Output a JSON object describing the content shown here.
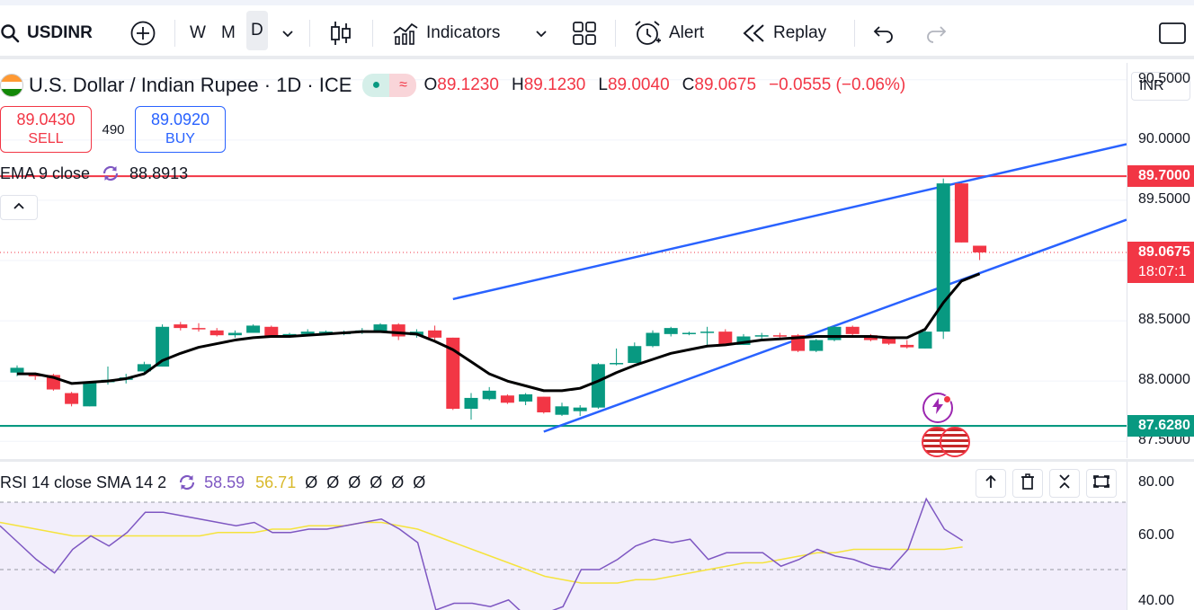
{
  "toolbar": {
    "symbol": "USDINR",
    "intervals": [
      "W",
      "M",
      "D"
    ],
    "active_interval": "D",
    "indicators_label": "Indicators",
    "alert_label": "Alert",
    "replay_label": "Replay"
  },
  "legend": {
    "title": "U.S. Dollar / Indian Rupee · 1D · ICE",
    "open_label": "O",
    "open": "89.1230",
    "high_label": "H",
    "high": "89.1230",
    "low_label": "L",
    "low": "89.0040",
    "close_label": "C",
    "close": "89.0675",
    "change": "−0.0555 (−0.06%)"
  },
  "trade": {
    "sell_price": "89.0430",
    "sell_label": "SELL",
    "spread": "490",
    "buy_price": "89.0920",
    "buy_label": "BUY"
  },
  "ema": {
    "label": "EMA 9 close",
    "value": "88.8913"
  },
  "price_scale": {
    "currency": "INR",
    "ticks": [
      "90.5000",
      "90.0000",
      "89.5000",
      "88.5000",
      "88.0000",
      "87.5000"
    ],
    "tags": {
      "resistance": "89.7000",
      "last": "89.0675",
      "countdown": "18:07:1",
      "support": "87.6280"
    }
  },
  "rsi": {
    "label": "RSI 14 close SMA 14 2",
    "value": "58.59",
    "sma": "56.71",
    "na_values": [
      "Ø",
      "Ø",
      "Ø",
      "Ø",
      "Ø",
      "Ø"
    ],
    "ticks": [
      "80.00",
      "60.00",
      "40.00"
    ]
  },
  "colors": {
    "up": "#089981",
    "down": "#f23645",
    "ema": "#000000",
    "channel": "#2962ff",
    "resistance": "#f23645",
    "support": "#089981",
    "rsi": "#7e57c2",
    "rsi_sma": "#f5e33d"
  },
  "chart_data": {
    "type": "candlestick",
    "interval": "1D",
    "ohlc": [
      [
        88.07,
        88.13,
        88.04,
        88.11
      ],
      [
        88.05,
        88.07,
        88.01,
        88.04
      ],
      [
        88.05,
        88.06,
        87.92,
        87.93
      ],
      [
        87.9,
        87.91,
        87.79,
        87.81
      ],
      [
        87.79,
        87.99,
        87.79,
        87.99
      ],
      [
        87.99,
        88.12,
        87.97,
        88.01
      ],
      [
        88.01,
        88.06,
        87.98,
        88.03
      ],
      [
        88.08,
        88.16,
        88.06,
        88.14
      ],
      [
        88.12,
        88.47,
        88.12,
        88.45
      ],
      [
        88.47,
        88.49,
        88.42,
        88.44
      ],
      [
        88.44,
        88.48,
        88.41,
        88.43
      ],
      [
        88.42,
        88.44,
        88.37,
        88.38
      ],
      [
        88.38,
        88.42,
        88.36,
        88.4
      ],
      [
        88.4,
        88.47,
        88.4,
        88.46
      ],
      [
        88.45,
        88.46,
        88.36,
        88.37
      ],
      [
        88.39,
        88.4,
        88.37,
        88.39
      ],
      [
        88.39,
        88.43,
        88.39,
        88.41
      ],
      [
        88.41,
        88.42,
        88.4,
        88.41
      ],
      [
        88.4,
        88.42,
        88.38,
        88.4
      ],
      [
        88.4,
        88.44,
        88.39,
        88.42
      ],
      [
        88.41,
        88.48,
        88.41,
        88.47
      ],
      [
        88.47,
        88.48,
        88.34,
        88.37
      ],
      [
        88.38,
        88.43,
        88.36,
        88.41
      ],
      [
        88.42,
        88.46,
        88.33,
        88.36
      ],
      [
        88.36,
        88.36,
        87.76,
        87.77
      ],
      [
        87.77,
        87.9,
        87.68,
        87.86
      ],
      [
        87.85,
        87.95,
        87.84,
        87.92
      ],
      [
        87.88,
        87.89,
        87.81,
        87.82
      ],
      [
        87.83,
        87.9,
        87.8,
        87.89
      ],
      [
        87.87,
        87.87,
        87.73,
        87.74
      ],
      [
        87.72,
        87.82,
        87.71,
        87.79
      ],
      [
        87.75,
        87.8,
        87.71,
        87.78
      ],
      [
        87.78,
        88.15,
        87.77,
        88.14
      ],
      [
        88.14,
        88.27,
        88.13,
        88.15
      ],
      [
        88.15,
        88.32,
        88.15,
        88.29
      ],
      [
        88.29,
        88.42,
        88.28,
        88.4
      ],
      [
        88.39,
        88.45,
        88.37,
        88.44
      ],
      [
        88.4,
        88.41,
        88.38,
        88.4
      ],
      [
        88.4,
        88.45,
        88.3,
        88.41
      ],
      [
        88.41,
        88.43,
        88.32,
        88.3
      ],
      [
        88.3,
        88.39,
        88.3,
        88.37
      ],
      [
        88.37,
        88.4,
        88.35,
        88.38
      ],
      [
        88.38,
        88.4,
        88.36,
        88.37
      ],
      [
        88.38,
        88.39,
        88.24,
        88.25
      ],
      [
        88.25,
        88.35,
        88.24,
        88.34
      ],
      [
        88.34,
        88.46,
        88.33,
        88.45
      ],
      [
        88.45,
        88.46,
        88.38,
        88.39
      ],
      [
        88.38,
        88.39,
        88.33,
        88.34
      ],
      [
        88.36,
        88.37,
        88.3,
        88.31
      ],
      [
        88.3,
        88.34,
        88.27,
        88.28
      ],
      [
        88.27,
        88.42,
        88.27,
        88.41
      ],
      [
        88.41,
        89.68,
        88.35,
        89.64
      ],
      [
        89.64,
        89.64,
        89.15,
        89.15
      ],
      [
        89.123,
        89.123,
        89.004,
        89.0675
      ]
    ],
    "ema9_close": [
      88.06,
      88.06,
      88.03,
      87.98,
      87.99,
      88.0,
      88.02,
      88.06,
      88.17,
      88.23,
      88.28,
      88.31,
      88.34,
      88.36,
      88.37,
      88.37,
      88.38,
      88.39,
      88.4,
      88.41,
      88.41,
      88.4,
      88.39,
      88.33,
      88.26,
      88.16,
      88.06,
      88.0,
      87.96,
      87.92,
      87.92,
      87.94,
      88.0,
      88.07,
      88.13,
      88.18,
      88.23,
      88.26,
      88.29,
      88.3,
      88.32,
      88.34,
      88.35,
      88.36,
      88.37,
      88.37,
      88.37,
      88.37,
      88.36,
      88.36,
      88.43,
      88.65,
      88.83,
      88.89
    ],
    "horizontal_lines": [
      89.7,
      87.628
    ],
    "channel": {
      "upper": [
        [
          24,
          88.68
        ],
        [
          54,
          89.72
        ]
      ],
      "lower": [
        [
          29,
          87.58
        ],
        [
          54,
          88.95
        ]
      ]
    },
    "y_range": [
      87.36,
      90.64
    ],
    "rsi14": [
      63,
      58,
      53,
      49,
      56,
      60,
      57,
      61,
      67,
      67,
      66,
      65,
      64,
      63,
      64,
      61,
      61,
      62,
      62,
      63,
      64,
      65,
      62,
      58,
      38,
      40,
      40,
      39,
      41,
      36,
      37,
      39,
      50,
      50,
      53,
      57,
      59,
      58,
      59,
      53,
      55,
      55,
      55,
      51,
      53,
      56,
      54,
      53,
      51,
      50,
      56,
      71,
      62,
      58.59
    ],
    "rsi_sma": [
      64,
      63,
      62,
      61,
      60,
      60,
      60,
      60,
      60,
      60,
      60,
      60,
      61,
      61,
      61,
      62,
      62,
      63,
      63,
      63,
      64,
      64,
      63,
      62,
      60,
      58,
      56,
      54,
      52,
      50,
      48,
      47,
      46,
      46,
      46,
      47,
      47,
      48,
      49,
      50,
      51,
      52,
      52,
      53,
      54,
      55,
      55,
      56,
      56,
      56,
      56,
      56,
      56,
      56.71
    ],
    "rsi_range": [
      38,
      82
    ],
    "rsi_bands": [
      70,
      50
    ]
  }
}
